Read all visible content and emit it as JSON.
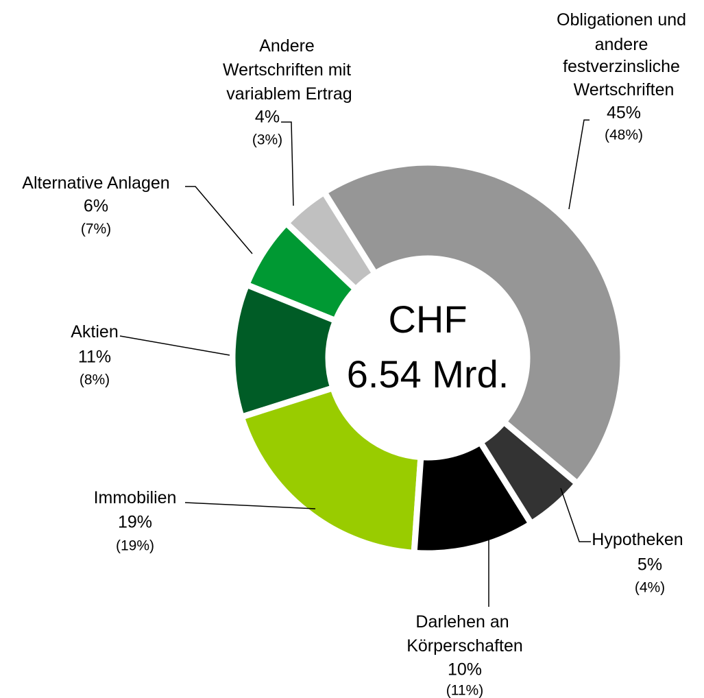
{
  "chart_data": {
    "type": "donut",
    "center_text": [
      "CHF",
      "6.54 Mrd."
    ],
    "categories": [
      "Obligationen und andere festverzinsliche Wertschriften",
      "Hypotheken",
      "Darlehen an Körperschaften",
      "Immobilien",
      "Aktien",
      "Alternative Anlagen",
      "Andere Wertschriften mit variablem Ertrag"
    ],
    "values": [
      45,
      5,
      10,
      19,
      11,
      6,
      4
    ],
    "value_labels": [
      "45%",
      "5%",
      "10%",
      "19%",
      "11%",
      "6%",
      "4%"
    ],
    "prior_value_labels": [
      "(48%)",
      "(4%)",
      "(11%)",
      "(19%)",
      "(8%)",
      "(7%)",
      "(3%)"
    ],
    "colors": [
      "#969696",
      "#333333",
      "#000000",
      "#99cc00",
      "#005c26",
      "#009933",
      "#c0c0c0"
    ]
  }
}
